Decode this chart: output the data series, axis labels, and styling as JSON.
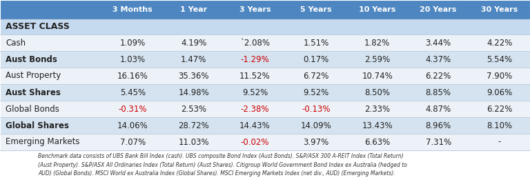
{
  "columns": [
    "3 Months",
    "1 Year",
    "3 Years",
    "5 Years",
    "10 Years",
    "20 Years",
    "30 Years"
  ],
  "rows": [
    {
      "label": "ASSET CLASS",
      "values": [
        "",
        "",
        "",
        "",
        "",
        "",
        ""
      ],
      "label_bold": true,
      "values_bold": false,
      "header_row": true
    },
    {
      "label": "Cash",
      "values": [
        "1.09%",
        "4.19%",
        "`2.08%",
        "1.51%",
        "1.82%",
        "3.44%",
        "4.22%"
      ],
      "label_bold": false,
      "values_bold": false,
      "header_row": false
    },
    {
      "label": "Aust Bonds",
      "values": [
        "1.03%",
        "1.47%",
        "-1.29%",
        "0.17%",
        "2.59%",
        "4.37%",
        "5.54%"
      ],
      "label_bold": true,
      "values_bold": false,
      "header_row": false
    },
    {
      "label": "Aust Property",
      "values": [
        "16.16%",
        "35.36%",
        "11.52%",
        "6.72%",
        "10.74%",
        "6.22%",
        "7.90%"
      ],
      "label_bold": false,
      "values_bold": false,
      "header_row": false
    },
    {
      "label": "Aust Shares",
      "values": [
        "5.45%",
        "14.98%",
        "9.52%",
        "9.52%",
        "8.50%",
        "8.85%",
        "9.06%"
      ],
      "label_bold": true,
      "values_bold": false,
      "header_row": false
    },
    {
      "label": "Global Bonds",
      "values": [
        "-0.31%",
        "2.53%",
        "-2.38%",
        "-0.13%",
        "2.33%",
        "4.87%",
        "6.22%"
      ],
      "label_bold": false,
      "values_bold": false,
      "header_row": false
    },
    {
      "label": "Global Shares",
      "values": [
        "14.06%",
        "28.72%",
        "14.43%",
        "14.09%",
        "13.43%",
        "8.96%",
        "8.10%"
      ],
      "label_bold": true,
      "values_bold": false,
      "header_row": false
    },
    {
      "label": "Emerging Markets",
      "values": [
        "7.07%",
        "11.03%",
        "-0.02%",
        "3.97%",
        "6.63%",
        "7.31%",
        "-"
      ],
      "label_bold": false,
      "values_bold": false,
      "header_row": false
    }
  ],
  "negative_cells": {
    "1": [],
    "2": [
      2
    ],
    "3": [],
    "4": [],
    "5": [
      0,
      2,
      3
    ],
    "6": [],
    "7": [
      2
    ]
  },
  "header_bg": "#4d86c0",
  "header_text": "#ffffff",
  "asset_class_bg": "#c5d9ef",
  "row_bg_light": "#edf2f9",
  "row_bg_mid": "#d5e3f0",
  "text_color": "#222222",
  "negative_color": "#cc0000",
  "footer_text": "Benchmark data consists of UBS Bank Bill Index (cash). UBS composite Bond Index (Aust Bonds). S&P/ASX 300 A-REIT Index (Total Return)\n(Aust Property). S&P/ASX All Ordinaries Index (Total Return) (Aust Shares). Citigroup World Government Bond Index ex Australia (hedged to\nAUD) (Global Bonds). MSCI World ex Australia Index (Global Shares). MSCI Emerging Markets Index (net div., AUD) (Emerging Markets).",
  "figsize": [
    7.68,
    2.77
  ],
  "dpi": 100
}
